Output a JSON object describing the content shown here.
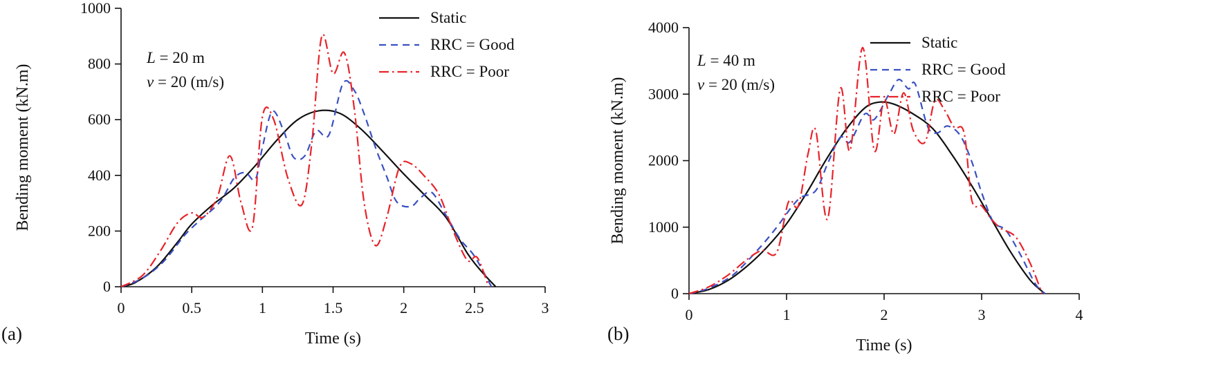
{
  "panels": [
    {
      "label": "(a)",
      "annotation": {
        "line1_var": "L",
        "line1_rest": " = 20 m",
        "line2_var": "v",
        "line2_rest": " = 20 (m/s)"
      }
    },
    {
      "label": "(b)",
      "annotation": {
        "line1_var": "L",
        "line1_rest": " = 40 m",
        "line2_var": "v",
        "line2_rest": " = 20 (m/s)"
      }
    }
  ],
  "chart_data": [
    {
      "type": "line",
      "title": "",
      "xlabel": "Time (s)",
      "ylabel": "Bending moment (kN.m)",
      "xlim": [
        0,
        3
      ],
      "ylim": [
        0,
        1000
      ],
      "xticks": [
        0,
        0.5,
        1,
        1.5,
        2,
        2.5,
        3
      ],
      "xtick_labels": [
        "0",
        "0.5",
        "1",
        "1.5",
        "2",
        "2.5",
        "3"
      ],
      "yticks": [
        0,
        200,
        400,
        600,
        800,
        1000
      ],
      "ytick_labels": [
        "0",
        "200",
        "400",
        "600",
        "800",
        "1000"
      ],
      "grid": false,
      "legend_position": "upper center",
      "series": [
        {
          "name": "Static",
          "color": "#111111",
          "dash": "solid",
          "x": [
            0,
            0.1,
            0.25,
            0.4,
            0.5,
            0.65,
            0.8,
            0.95,
            1.1,
            1.25,
            1.4,
            1.55,
            1.7,
            1.85,
            2.0,
            2.15,
            2.3,
            2.45,
            2.55,
            2.65
          ],
          "y": [
            0,
            15,
            70,
            160,
            225,
            295,
            355,
            435,
            525,
            600,
            632,
            622,
            565,
            487,
            405,
            328,
            248,
            120,
            55,
            0
          ]
        },
        {
          "name": "RRC = Good",
          "color": "#3a50c2",
          "dash": "dashed",
          "x": [
            0,
            0.15,
            0.3,
            0.45,
            0.55,
            0.7,
            0.8,
            0.88,
            0.95,
            1.0,
            1.07,
            1.15,
            1.22,
            1.3,
            1.38,
            1.47,
            1.57,
            1.65,
            1.72,
            1.8,
            1.88,
            1.95,
            2.05,
            2.12,
            2.2,
            2.3,
            2.4,
            2.5,
            2.62
          ],
          "y": [
            0,
            30,
            90,
            185,
            235,
            305,
            390,
            410,
            385,
            500,
            630,
            560,
            465,
            470,
            560,
            545,
            730,
            705,
            620,
            500,
            395,
            305,
            288,
            320,
            338,
            255,
            170,
            110,
            0
          ]
        },
        {
          "name": "RRC = Poor",
          "color": "#e8232a",
          "dash": "dashdot",
          "x": [
            0,
            0.15,
            0.28,
            0.4,
            0.5,
            0.58,
            0.68,
            0.77,
            0.85,
            0.93,
            1.0,
            1.08,
            1.18,
            1.28,
            1.35,
            1.42,
            1.5,
            1.58,
            1.65,
            1.72,
            1.8,
            1.88,
            1.97,
            2.05,
            2.15,
            2.25,
            2.35,
            2.45,
            2.52,
            2.6
          ],
          "y": [
            0,
            40,
            130,
            230,
            265,
            250,
            320,
            470,
            300,
            215,
            610,
            600,
            390,
            295,
            520,
            900,
            765,
            840,
            640,
            300,
            148,
            250,
            430,
            442,
            395,
            330,
            200,
            95,
            105,
            0
          ]
        }
      ]
    },
    {
      "type": "line",
      "title": "",
      "xlabel": "Time (s)",
      "ylabel": "Bending moment (kN.m)",
      "xlim": [
        0,
        4
      ],
      "ylim": [
        0,
        4000
      ],
      "xticks": [
        0,
        1,
        2,
        3,
        4
      ],
      "xtick_labels": [
        "0",
        "1",
        "2",
        "3",
        "4"
      ],
      "yticks": [
        0,
        1000,
        2000,
        3000,
        4000
      ],
      "ytick_labels": [
        "0",
        "1000",
        "2000",
        "3000",
        "4000"
      ],
      "grid": false,
      "legend_position": "upper right",
      "series": [
        {
          "name": "Static",
          "color": "#111111",
          "dash": "solid",
          "x": [
            0,
            0.2,
            0.4,
            0.6,
            0.8,
            1.0,
            1.2,
            1.4,
            1.6,
            1.8,
            1.95,
            2.1,
            2.3,
            2.5,
            2.7,
            2.9,
            3.1,
            3.3,
            3.5,
            3.65
          ],
          "y": [
            0,
            60,
            200,
            420,
            700,
            1050,
            1500,
            2000,
            2450,
            2790,
            2880,
            2850,
            2700,
            2480,
            2080,
            1620,
            1120,
            620,
            200,
            0
          ]
        },
        {
          "name": "RRC = Good",
          "color": "#3a50c2",
          "dash": "dashed",
          "x": [
            0,
            0.2,
            0.45,
            0.7,
            0.9,
            1.05,
            1.15,
            1.3,
            1.42,
            1.55,
            1.65,
            1.8,
            1.9,
            2.05,
            2.15,
            2.25,
            2.32,
            2.45,
            2.55,
            2.65,
            2.78,
            2.9,
            3.0,
            3.12,
            3.25,
            3.4,
            3.55,
            3.65
          ],
          "y": [
            0,
            80,
            280,
            650,
            1000,
            1300,
            1450,
            1550,
            1950,
            2350,
            2280,
            2700,
            2620,
            3000,
            3220,
            3080,
            3150,
            2500,
            2420,
            2520,
            2380,
            1980,
            1520,
            1080,
            950,
            580,
            150,
            0
          ]
        },
        {
          "name": "RRC = Poor",
          "color": "#e8232a",
          "dash": "dashdot",
          "x": [
            0,
            0.2,
            0.4,
            0.6,
            0.75,
            0.9,
            1.02,
            1.12,
            1.22,
            1.3,
            1.42,
            1.55,
            1.65,
            1.78,
            1.9,
            2.0,
            2.1,
            2.2,
            2.3,
            2.42,
            2.52,
            2.62,
            2.72,
            2.82,
            2.9,
            3.0,
            3.1,
            3.2,
            3.35,
            3.5,
            3.62
          ],
          "y": [
            0,
            100,
            280,
            520,
            650,
            620,
            1380,
            1320,
            2100,
            2450,
            1120,
            3080,
            2150,
            3700,
            2150,
            2920,
            2400,
            3020,
            2450,
            2280,
            2900,
            2760,
            2500,
            2420,
            1400,
            1320,
            1120,
            980,
            850,
            450,
            0
          ]
        }
      ]
    }
  ]
}
